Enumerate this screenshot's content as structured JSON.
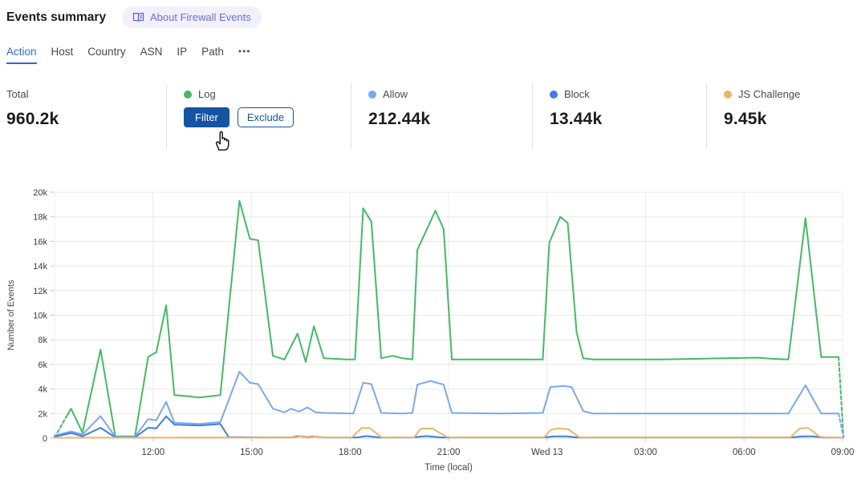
{
  "header": {
    "title": "Events summary",
    "about_badge": {
      "icon": "open-book-icon",
      "label": "About Firewall Events"
    }
  },
  "tabs": {
    "items": [
      {
        "label": "Action",
        "active": true
      },
      {
        "label": "Host",
        "active": false
      },
      {
        "label": "Country",
        "active": false
      },
      {
        "label": "ASN",
        "active": false
      },
      {
        "label": "IP",
        "active": false
      },
      {
        "label": "Path",
        "active": false
      },
      {
        "label": "•••",
        "active": false
      }
    ]
  },
  "stats": {
    "total": {
      "label": "Total",
      "value": "960.2k"
    },
    "log": {
      "label": "Log",
      "dot_color": "#43ba66",
      "filter_label": "Filter",
      "exclude_label": "Exclude"
    },
    "allow": {
      "label": "Allow",
      "value": "212.44k",
      "dot_color": "#7ba8f0"
    },
    "block": {
      "label": "Block",
      "value": "13.44k",
      "dot_color": "#3e7ee6"
    },
    "js_challenge": {
      "label": "JS Challenge",
      "value": "9.45k",
      "dot_color": "#efb467"
    }
  },
  "colors": {
    "accent_blue": "#1553a4",
    "active_tab": "#2d6bd2",
    "badge_text": "#6a6fd6",
    "grid": "#e8e8e8",
    "zero_line": "#d0d0d0"
  },
  "chart_data": {
    "type": "line",
    "title": "",
    "xlabel": "Time (local)",
    "ylabel": "Number of Events",
    "x_unit_hours_from": "09:00 local (Tue) to 09:00 (Wed 13), 24h span",
    "xlim": [
      0,
      24
    ],
    "ylim": [
      0,
      20000
    ],
    "grid": true,
    "legend_position": "top-stats-row",
    "xticks": [
      {
        "h": 3,
        "label": "12:00"
      },
      {
        "h": 6,
        "label": "15:00"
      },
      {
        "h": 9,
        "label": "18:00"
      },
      {
        "h": 12,
        "label": "21:00"
      },
      {
        "h": 15,
        "label": "Wed 13"
      },
      {
        "h": 18,
        "label": "03:00"
      },
      {
        "h": 21,
        "label": "06:00"
      },
      {
        "h": 24,
        "label": "09:00"
      }
    ],
    "yticks": [
      {
        "v": 0,
        "label": "0"
      },
      {
        "v": 2000,
        "label": "2k"
      },
      {
        "v": 4000,
        "label": "4k"
      },
      {
        "v": 6000,
        "label": "6k"
      },
      {
        "v": 8000,
        "label": "8k"
      },
      {
        "v": 10000,
        "label": "10k"
      },
      {
        "v": 12000,
        "label": "12k"
      },
      {
        "v": 14000,
        "label": "14k"
      },
      {
        "v": 16000,
        "label": "16k"
      },
      {
        "v": 18000,
        "label": "18k"
      },
      {
        "v": 20000,
        "label": "20k"
      }
    ],
    "series": [
      {
        "name": "Log",
        "color": "#43ba66",
        "segments": [
          {
            "style": "dashed",
            "points": [
              [
                0,
                50
              ],
              [
                0.35,
                1700
              ]
            ]
          },
          {
            "style": "solid",
            "points": [
              [
                0.35,
                1700
              ],
              [
                0.5,
                2400
              ],
              [
                0.85,
                450
              ],
              [
                1.4,
                7200
              ],
              [
                1.85,
                150
              ],
              [
                2.45,
                150
              ],
              [
                2.85,
                6600
              ],
              [
                3.1,
                7000
              ],
              [
                3.4,
                10800
              ],
              [
                3.65,
                3500
              ],
              [
                4.1,
                3400
              ],
              [
                4.4,
                3300
              ],
              [
                5.05,
                3500
              ],
              [
                5.63,
                19300
              ],
              [
                5.95,
                16200
              ],
              [
                6.2,
                16100
              ],
              [
                6.65,
                6700
              ],
              [
                7.0,
                6400
              ],
              [
                7.4,
                8500
              ],
              [
                7.65,
                6200
              ],
              [
                7.9,
                9100
              ],
              [
                8.2,
                6500
              ],
              [
                8.9,
                6400
              ],
              [
                9.15,
                6400
              ],
              [
                9.4,
                18700
              ],
              [
                9.65,
                17600
              ],
              [
                9.95,
                6500
              ],
              [
                10.3,
                6700
              ],
              [
                10.6,
                6500
              ],
              [
                10.9,
                6400
              ],
              [
                11.05,
                15300
              ],
              [
                11.6,
                18500
              ],
              [
                11.85,
                17000
              ],
              [
                12.1,
                6400
              ],
              [
                13.5,
                6400
              ],
              [
                14.87,
                6400
              ],
              [
                15.07,
                15900
              ],
              [
                15.4,
                18000
              ],
              [
                15.63,
                17500
              ],
              [
                15.9,
                8600
              ],
              [
                16.1,
                6500
              ],
              [
                16.4,
                6400
              ],
              [
                18.5,
                6400
              ],
              [
                21.4,
                6550
              ],
              [
                21.9,
                6450
              ],
              [
                22.35,
                6400
              ],
              [
                22.87,
                17900
              ],
              [
                23.35,
                6600
              ],
              [
                23.88,
                6600
              ]
            ]
          },
          {
            "style": "dashed",
            "points": [
              [
                23.88,
                6600
              ],
              [
                24.03,
                50
              ]
            ]
          }
        ]
      },
      {
        "name": "Allow",
        "color": "#7ba8f0",
        "segments": [
          {
            "style": "solid",
            "points": [
              [
                0,
                200
              ],
              [
                0.5,
                550
              ],
              [
                0.85,
                300
              ],
              [
                1.4,
                1800
              ],
              [
                1.85,
                100
              ],
              [
                2.45,
                100
              ],
              [
                2.85,
                1550
              ],
              [
                3.1,
                1450
              ],
              [
                3.4,
                2950
              ],
              [
                3.65,
                1250
              ],
              [
                4.4,
                1150
              ],
              [
                5.05,
                1300
              ],
              [
                5.63,
                5400
              ],
              [
                5.95,
                4500
              ],
              [
                6.2,
                4400
              ],
              [
                6.65,
                2400
              ],
              [
                7.0,
                2100
              ],
              [
                7.2,
                2400
              ],
              [
                7.45,
                2150
              ],
              [
                7.7,
                2500
              ],
              [
                7.95,
                2100
              ],
              [
                8.2,
                2050
              ],
              [
                9.1,
                2000
              ],
              [
                9.4,
                4500
              ],
              [
                9.65,
                4400
              ],
              [
                9.95,
                2050
              ],
              [
                10.6,
                2000
              ],
              [
                10.9,
                2050
              ],
              [
                11.05,
                4350
              ],
              [
                11.45,
                4650
              ],
              [
                11.85,
                4350
              ],
              [
                12.1,
                2050
              ],
              [
                13.5,
                2000
              ],
              [
                14.87,
                2050
              ],
              [
                15.1,
                4150
              ],
              [
                15.5,
                4250
              ],
              [
                15.75,
                4150
              ],
              [
                16.1,
                2200
              ],
              [
                16.4,
                2000
              ],
              [
                18.5,
                2000
              ],
              [
                22.35,
                2000
              ],
              [
                22.87,
                4300
              ],
              [
                23.35,
                2000
              ],
              [
                23.88,
                2000
              ]
            ]
          },
          {
            "style": "dashed",
            "points": [
              [
                23.88,
                2000
              ],
              [
                24.03,
                50
              ]
            ]
          }
        ]
      },
      {
        "name": "Block",
        "color": "#3e7ee6",
        "segments": [
          {
            "style": "solid",
            "points": [
              [
                0,
                120
              ],
              [
                0.5,
                420
              ],
              [
                0.85,
                150
              ],
              [
                1.4,
                850
              ],
              [
                1.85,
                60
              ],
              [
                2.45,
                60
              ],
              [
                2.85,
                850
              ],
              [
                3.1,
                800
              ],
              [
                3.4,
                1780
              ],
              [
                3.65,
                1100
              ],
              [
                4.4,
                1020
              ],
              [
                5.05,
                1150
              ],
              [
                5.3,
                90
              ],
              [
                6.5,
                60
              ],
              [
                7.2,
                70
              ],
              [
                7.45,
                160
              ],
              [
                7.7,
                100
              ],
              [
                7.95,
                140
              ],
              [
                8.2,
                60
              ],
              [
                9.2,
                60
              ],
              [
                9.5,
                170
              ],
              [
                9.9,
                60
              ],
              [
                10.9,
                60
              ],
              [
                11.3,
                170
              ],
              [
                11.8,
                60
              ],
              [
                14.9,
                60
              ],
              [
                15.2,
                150
              ],
              [
                15.6,
                150
              ],
              [
                15.9,
                60
              ],
              [
                22.4,
                60
              ],
              [
                22.8,
                150
              ],
              [
                23.1,
                150
              ],
              [
                23.4,
                60
              ],
              [
                23.88,
                60
              ]
            ]
          },
          {
            "style": "dashed",
            "points": [
              [
                23.88,
                60
              ],
              [
                24.03,
                20
              ]
            ]
          }
        ]
      },
      {
        "name": "JS Challenge",
        "color": "#efb467",
        "segments": [
          {
            "style": "solid",
            "points": [
              [
                0,
                40
              ],
              [
                2.0,
                40
              ],
              [
                4.0,
                45
              ],
              [
                6.0,
                45
              ],
              [
                7.15,
                45
              ],
              [
                7.4,
                200
              ],
              [
                7.6,
                90
              ],
              [
                7.85,
                170
              ],
              [
                8.15,
                60
              ],
              [
                9.05,
                60
              ],
              [
                9.35,
                820
              ],
              [
                9.6,
                830
              ],
              [
                9.95,
                70
              ],
              [
                10.5,
                45
              ],
              [
                10.95,
                60
              ],
              [
                11.15,
                760
              ],
              [
                11.5,
                800
              ],
              [
                11.95,
                90
              ],
              [
                12.2,
                45
              ],
              [
                14.9,
                45
              ],
              [
                15.12,
                700
              ],
              [
                15.35,
                800
              ],
              [
                15.65,
                730
              ],
              [
                15.98,
                70
              ],
              [
                16.3,
                45
              ],
              [
                22.4,
                45
              ],
              [
                22.7,
                790
              ],
              [
                22.95,
                850
              ],
              [
                23.3,
                120
              ],
              [
                23.55,
                45
              ],
              [
                23.88,
                45
              ]
            ]
          },
          {
            "style": "dashed",
            "points": [
              [
                23.88,
                45
              ],
              [
                24.03,
                20
              ]
            ]
          }
        ]
      }
    ]
  }
}
